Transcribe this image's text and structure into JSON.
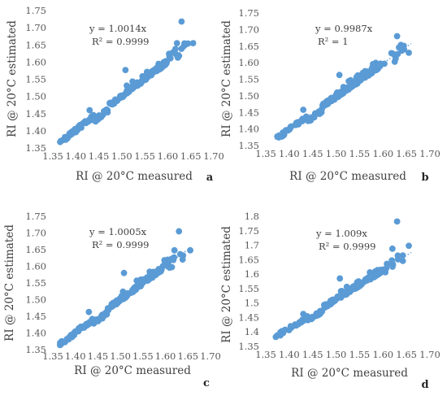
{
  "chart_data": [
    {
      "id": "a",
      "type": "scatter",
      "panel_label": "a",
      "xlabel": "RI @ 20°C measured",
      "ylabel": "RI @ 20°C estimated",
      "xlim": [
        1.35,
        1.7
      ],
      "ylim": [
        1.35,
        1.75
      ],
      "xticks": [
        "1.35",
        "1.40",
        "1.45",
        "1.50",
        "1.55",
        "1.60",
        "1.65",
        "1.70"
      ],
      "yticks": [
        "1.35",
        "1.40",
        "1.45",
        "1.50",
        "1.55",
        "1.60",
        "1.65",
        "1.70",
        "1.75"
      ],
      "xtick_values": [
        1.35,
        1.4,
        1.45,
        1.5,
        1.55,
        1.6,
        1.65,
        1.7
      ],
      "ytick_values": [
        1.35,
        1.4,
        1.45,
        1.5,
        1.55,
        1.6,
        1.65,
        1.7,
        1.75
      ],
      "equation": "y = 1.0014x",
      "r2": "R² = 0.9999",
      "trend_slope": 1.0014,
      "grid": false,
      "color": "#5B9BD5",
      "outliers": [
        [
          1.63,
          1.718
        ],
        [
          1.508,
          1.577
        ],
        [
          1.43,
          1.46
        ],
        [
          1.62,
          1.655
        ],
        [
          1.655,
          1.655
        ]
      ]
    },
    {
      "id": "b",
      "type": "scatter",
      "panel_label": "b",
      "xlabel": "RI @ 20°C measured",
      "ylabel": "RI @ 20°C estimated",
      "xlim": [
        1.35,
        1.7
      ],
      "ylim": [
        1.35,
        1.75
      ],
      "xticks": [
        "1.35",
        "1.40",
        "1.45",
        "1.50",
        "1.55",
        "1.60",
        "1.65",
        "1.70"
      ],
      "yticks": [
        "1.35",
        "1.40",
        "1.45",
        "1.50",
        "1.55",
        "1.60",
        "1.65",
        "1.70",
        "1.75"
      ],
      "xtick_values": [
        1.35,
        1.4,
        1.45,
        1.5,
        1.55,
        1.6,
        1.65,
        1.7
      ],
      "ytick_values": [
        1.35,
        1.4,
        1.45,
        1.5,
        1.55,
        1.6,
        1.65,
        1.7,
        1.75
      ],
      "equation": "y = 0.9987x",
      "r2": "R² = 1",
      "trend_slope": 0.9987,
      "grid": false,
      "color": "#5B9BD5",
      "outliers": [
        [
          1.63,
          1.68
        ],
        [
          1.507,
          1.563
        ],
        [
          1.43,
          1.458
        ],
        [
          1.62,
          1.628
        ],
        [
          1.655,
          1.63
        ]
      ]
    },
    {
      "id": "c",
      "type": "scatter",
      "panel_label": "c",
      "xlabel": "RI @ 20°C measured",
      "ylabel": "RI @ 20°C estimated",
      "xlim": [
        1.35,
        1.7
      ],
      "ylim": [
        1.35,
        1.75
      ],
      "xticks": [
        "1.35",
        "1.40",
        "1.45",
        "1.50",
        "1.55",
        "1.60",
        "1.65",
        "1.70"
      ],
      "yticks": [
        "1.35",
        "1.40",
        "1.45",
        "1.50",
        "1.55",
        "1.60",
        "1.65",
        "1.70",
        "1.75"
      ],
      "xtick_values": [
        1.35,
        1.4,
        1.45,
        1.5,
        1.55,
        1.6,
        1.65,
        1.7
      ],
      "ytick_values": [
        1.35,
        1.4,
        1.45,
        1.5,
        1.55,
        1.6,
        1.65,
        1.7,
        1.75
      ],
      "equation": "y = 1.0005x",
      "r2": "R² = 0.9999",
      "trend_slope": 1.0005,
      "grid": false,
      "color": "#5B9BD5",
      "outliers": [
        [
          1.63,
          1.705
        ],
        [
          1.508,
          1.58
        ],
        [
          1.43,
          1.463
        ],
        [
          1.62,
          1.648
        ],
        [
          1.655,
          1.648
        ]
      ]
    },
    {
      "id": "d",
      "type": "scatter",
      "panel_label": "d",
      "xlabel": "RI @ 20°C measured",
      "ylabel": "RI @ 20°C estimated",
      "xlim": [
        1.35,
        1.7
      ],
      "ylim": [
        1.35,
        1.8
      ],
      "xticks": [
        "1.35",
        "1.40",
        "1.45",
        "1.50",
        "1.55",
        "1.60",
        "1.65",
        "1.70"
      ],
      "yticks": [
        "1.35",
        "1.4",
        "1.45",
        "1.5",
        "1.55",
        "1.6",
        "1.65",
        "1.7",
        "1.75",
        "1.8"
      ],
      "xtick_values": [
        1.35,
        1.4,
        1.45,
        1.5,
        1.55,
        1.6,
        1.65,
        1.7
      ],
      "ytick_values": [
        1.35,
        1.4,
        1.45,
        1.5,
        1.55,
        1.6,
        1.65,
        1.7,
        1.75,
        1.8
      ],
      "equation": "y = 1.009x",
      "r2": "R² = 0.9999",
      "trend_slope": 1.009,
      "grid": false,
      "color": "#5B9BD5",
      "outliers": [
        [
          1.63,
          1.782
        ],
        [
          1.508,
          1.585
        ],
        [
          1.43,
          1.462
        ],
        [
          1.62,
          1.688
        ],
        [
          1.655,
          1.698
        ]
      ]
    }
  ]
}
